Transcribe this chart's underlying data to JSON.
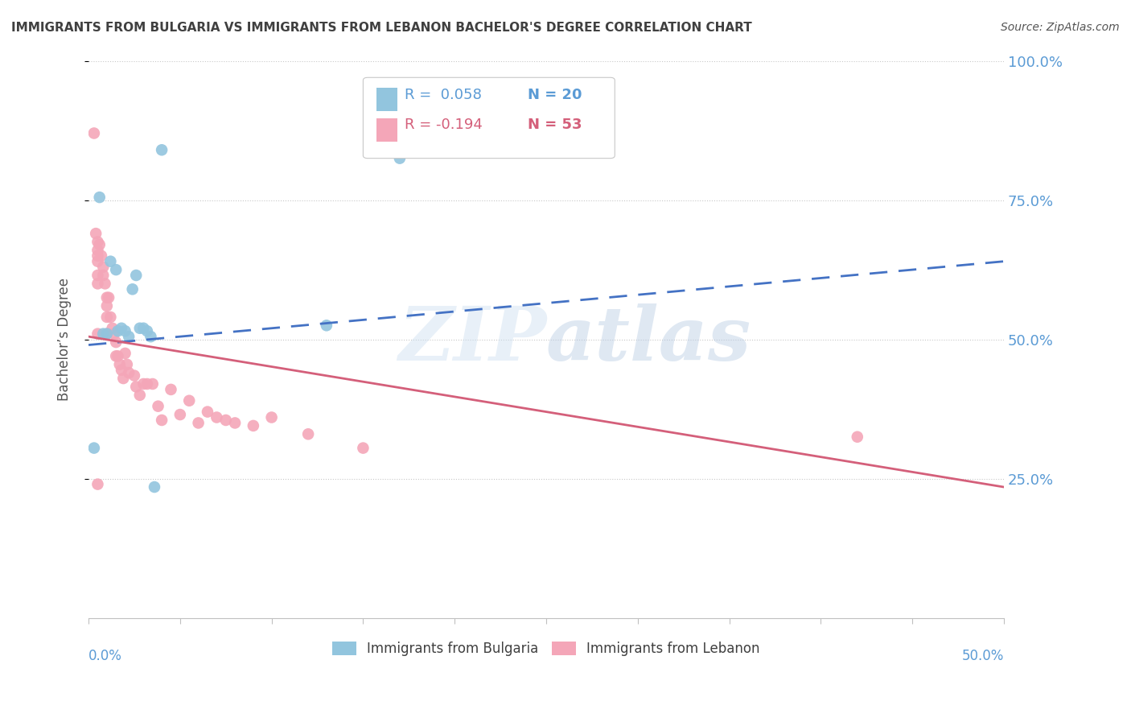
{
  "title": "IMMIGRANTS FROM BULGARIA VS IMMIGRANTS FROM LEBANON BACHELOR'S DEGREE CORRELATION CHART",
  "source": "Source: ZipAtlas.com",
  "ylabel": "Bachelor’s Degree",
  "xlim": [
    0.0,
    0.5
  ],
  "ylim": [
    0.0,
    1.0
  ],
  "ytick_positions": [
    0.25,
    0.5,
    0.75,
    1.0
  ],
  "ytick_labels": [
    "25.0%",
    "50.0%",
    "75.0%",
    "100.0%"
  ],
  "watermark": "ZIPatlas",
  "bulgaria_color": "#92c5de",
  "lebanon_color": "#f4a6b8",
  "trend_bulgaria_color": "#4472c4",
  "trend_lebanon_color": "#d45f7a",
  "axis_label_color": "#5b9bd5",
  "title_color": "#404040",
  "background_color": "#ffffff",
  "bulgaria_x": [
    0.003,
    0.006,
    0.008,
    0.01,
    0.012,
    0.015,
    0.016,
    0.018,
    0.02,
    0.022,
    0.024,
    0.026,
    0.028,
    0.03,
    0.032,
    0.034,
    0.036,
    0.04,
    0.13,
    0.17
  ],
  "bulgaria_y": [
    0.305,
    0.755,
    0.51,
    0.51,
    0.64,
    0.625,
    0.515,
    0.52,
    0.515,
    0.505,
    0.59,
    0.615,
    0.52,
    0.52,
    0.515,
    0.505,
    0.235,
    0.84,
    0.525,
    0.825
  ],
  "lebanon_x": [
    0.003,
    0.004,
    0.005,
    0.005,
    0.005,
    0.005,
    0.005,
    0.005,
    0.005,
    0.006,
    0.007,
    0.008,
    0.008,
    0.009,
    0.01,
    0.01,
    0.01,
    0.01,
    0.011,
    0.012,
    0.013,
    0.014,
    0.015,
    0.015,
    0.016,
    0.017,
    0.018,
    0.019,
    0.02,
    0.021,
    0.022,
    0.025,
    0.026,
    0.028,
    0.03,
    0.032,
    0.035,
    0.038,
    0.04,
    0.045,
    0.05,
    0.055,
    0.06,
    0.065,
    0.07,
    0.075,
    0.08,
    0.09,
    0.1,
    0.12,
    0.15,
    0.42,
    0.005
  ],
  "lebanon_y": [
    0.87,
    0.69,
    0.675,
    0.66,
    0.65,
    0.64,
    0.615,
    0.6,
    0.24,
    0.67,
    0.65,
    0.63,
    0.615,
    0.6,
    0.575,
    0.56,
    0.54,
    0.51,
    0.575,
    0.54,
    0.52,
    0.51,
    0.495,
    0.47,
    0.47,
    0.455,
    0.445,
    0.43,
    0.475,
    0.455,
    0.44,
    0.435,
    0.415,
    0.4,
    0.42,
    0.42,
    0.42,
    0.38,
    0.355,
    0.41,
    0.365,
    0.39,
    0.35,
    0.37,
    0.36,
    0.355,
    0.35,
    0.345,
    0.36,
    0.33,
    0.305,
    0.325,
    0.51
  ],
  "trend_bulgaria_x0": 0.0,
  "trend_bulgaria_y0": 0.49,
  "trend_bulgaria_x1": 0.5,
  "trend_bulgaria_y1": 0.64,
  "trend_lebanon_x0": 0.0,
  "trend_lebanon_y0": 0.505,
  "trend_lebanon_x1": 0.5,
  "trend_lebanon_y1": 0.235
}
